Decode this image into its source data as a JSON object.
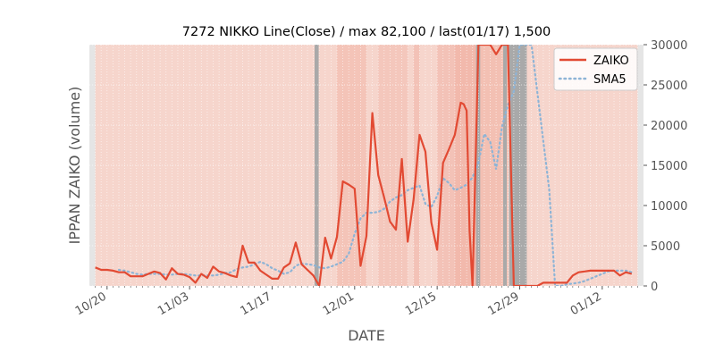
{
  "chart_data": {
    "type": "line",
    "title": "7272 NIKKO Line(Close) / max 82,100 / last(01/17) 1,500",
    "xlabel": "DATE",
    "ylabel": "IPPAN ZAIKO (volume)",
    "ylim": [
      0,
      30000
    ],
    "yticks": [
      0,
      5000,
      10000,
      15000,
      20000,
      25000,
      30000
    ],
    "ytick_labels": [
      "0",
      "5000",
      "10000",
      "15000",
      "20000",
      "25000",
      "30000"
    ],
    "x_start": "10/17",
    "x_end": "01/19",
    "xticks": [
      "10/20",
      "11/03",
      "11/17",
      "12/01",
      "12/15",
      "12/29",
      "01/12"
    ],
    "xtick_days": [
      3,
      17,
      31,
      45,
      59,
      73,
      87
    ],
    "grid": true,
    "y_axis_side": "right",
    "legend_position": "upper right",
    "colors": {
      "zaiko": "#e24a33",
      "sma5": "#8eb4d6",
      "background_band": "#f6d5cc",
      "highlight_band": "#f2b6a8",
      "gray_band": "#a9a9a9",
      "light_gray_band": "#e5e5e5",
      "axes_text": "#555555"
    },
    "series": [
      {
        "name": "ZAIKO",
        "style": "solid",
        "x": [
          1,
          2,
          3,
          4,
          5,
          6,
          7,
          8,
          9,
          10,
          11,
          12,
          13,
          14,
          15,
          16,
          17,
          18,
          19,
          20,
          21,
          22,
          23,
          24,
          25,
          26,
          27,
          28,
          29,
          30,
          31,
          32,
          33,
          34,
          35,
          36,
          37,
          38,
          39,
          40,
          41,
          42,
          43,
          44,
          45,
          46,
          47,
          48,
          49,
          50,
          51,
          52,
          53,
          54,
          55,
          56,
          57,
          58,
          59,
          60,
          61,
          62,
          63,
          63.5,
          64,
          64.5,
          65,
          66,
          67,
          68,
          69,
          70,
          71,
          72,
          73,
          74,
          75,
          76,
          77,
          78,
          79,
          80,
          81,
          82,
          83,
          84,
          85,
          86,
          87,
          88,
          89,
          90,
          91,
          92
        ],
        "values": [
          2300,
          2000,
          2000,
          1900,
          1700,
          1700,
          1200,
          1200,
          1200,
          1500,
          1800,
          1600,
          800,
          2200,
          1500,
          1400,
          1100,
          400,
          1500,
          1000,
          2400,
          1800,
          1600,
          1300,
          1100,
          5000,
          2900,
          2900,
          1900,
          1400,
          900,
          900,
          2300,
          2800,
          5400,
          2700,
          2000,
          1300,
          0,
          6000,
          3400,
          6100,
          13000,
          12600,
          12100,
          2500,
          6200,
          21500,
          13800,
          11000,
          8000,
          7000,
          15800,
          5500,
          10800,
          18800,
          16700,
          7900,
          4500,
          15300,
          17000,
          18800,
          22800,
          22600,
          21800,
          6900,
          0,
          30000,
          30000,
          30000,
          28800,
          30000,
          30000,
          0,
          0,
          0,
          0,
          0,
          400,
          400,
          400,
          400,
          400,
          1300,
          1700,
          1800,
          1900,
          1900,
          1900,
          1900,
          1900,
          1300,
          1700,
          1500
        ]
      },
      {
        "name": "SMA5",
        "style": "dotted",
        "x": [
          5,
          6,
          7,
          8,
          9,
          10,
          11,
          12,
          13,
          14,
          15,
          16,
          17,
          18,
          19,
          20,
          21,
          22,
          23,
          24,
          25,
          26,
          27,
          28,
          29,
          30,
          31,
          32,
          33,
          34,
          35,
          36,
          37,
          38,
          39,
          40,
          41,
          42,
          43,
          44,
          45,
          46,
          47,
          48,
          49,
          50,
          51,
          52,
          53,
          54,
          55,
          56,
          57,
          58,
          59,
          60,
          61,
          62,
          63,
          64,
          65,
          66,
          67,
          68,
          69,
          70,
          71,
          72,
          73,
          74,
          75,
          76,
          77,
          78,
          79,
          80,
          81,
          82,
          83,
          84,
          85,
          86,
          87,
          88,
          89,
          90,
          91,
          92
        ],
        "values": [
          2000,
          1900,
          1700,
          1500,
          1400,
          1500,
          1500,
          1500,
          1400,
          1400,
          1500,
          1500,
          1400,
          1300,
          1300,
          1300,
          1300,
          1400,
          1600,
          1700,
          2100,
          2300,
          2400,
          2700,
          3000,
          2700,
          2200,
          1900,
          1500,
          1700,
          2500,
          2800,
          2700,
          2600,
          2300,
          2200,
          2400,
          2700,
          3000,
          4000,
          6500,
          8400,
          9100,
          9100,
          9200,
          9600,
          10500,
          11000,
          11300,
          11900,
          12200,
          12500,
          10200,
          9800,
          11200,
          13400,
          12800,
          11900,
          12200,
          12600,
          13500,
          15300,
          18900,
          17900,
          14500,
          19800,
          22500,
          24200,
          30000,
          30000,
          30000,
          24000,
          18000,
          12000,
          0,
          0,
          200,
          300,
          400,
          600,
          900,
          1200,
          1500,
          1800,
          1900,
          1900,
          1900,
          1700
        ]
      }
    ]
  }
}
